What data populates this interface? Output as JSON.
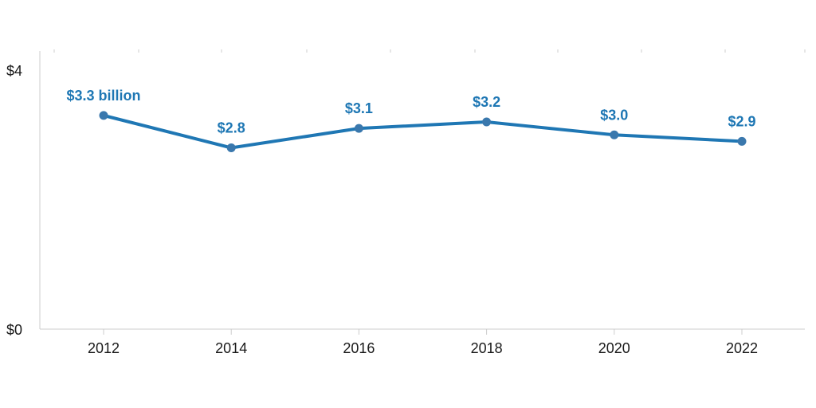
{
  "chart_data": {
    "type": "line",
    "x": [
      "2012",
      "2014",
      "2016",
      "2018",
      "2020",
      "2022"
    ],
    "values": [
      3.3,
      2.8,
      3.1,
      3.2,
      3.0,
      2.9
    ],
    "data_labels": [
      "$3.3 billion",
      "$2.8",
      "$3.1",
      "$3.2",
      "$3.0",
      "$2.9"
    ],
    "y_tick_labels": [
      "$0",
      "$4"
    ],
    "y_ticks": [
      0,
      4
    ],
    "ylim": [
      0,
      4
    ],
    "grid": false,
    "title": "",
    "xlabel": "",
    "ylabel": ""
  },
  "colors": {
    "line": "#1f77b4",
    "marker": "#3a78ad",
    "label": "#1e77b4",
    "axis": "#cccccc",
    "text": "#1a1a1a"
  }
}
